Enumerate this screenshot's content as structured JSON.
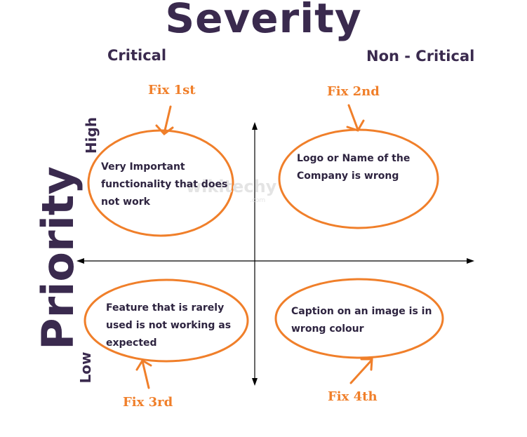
{
  "title": "Severity",
  "axes": {
    "column_labels": [
      "Critical",
      "Non - Critical"
    ],
    "row_labels": [
      "High",
      "Low"
    ],
    "side_label": "Priority"
  },
  "quadrants": [
    {
      "fix": "Fix 1st",
      "text": "Very Important functionality that does not work"
    },
    {
      "fix": "Fix 2nd",
      "text": "Logo or Name of the Company is wrong"
    },
    {
      "fix": "Fix 3rd",
      "text": "Feature that is rarely used is not working as expected"
    },
    {
      "fix": "Fix 4th",
      "text": "Caption on an image is in wrong colour"
    }
  ],
  "watermark": {
    "main": "wikitechy",
    "sub": ".com"
  },
  "colors": {
    "accent": "#f07f2a",
    "heading": "#3a2a4e",
    "text": "#2e2440",
    "axis": "#000000"
  },
  "icons": [
    "arrow-up-icon",
    "arrow-down-icon",
    "arrow-left-icon",
    "arrow-right-icon"
  ]
}
